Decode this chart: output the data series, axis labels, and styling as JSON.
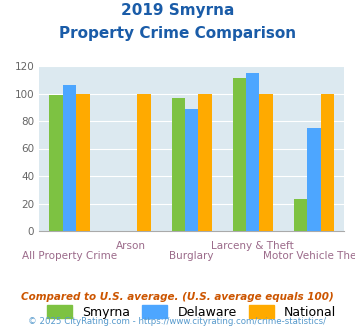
{
  "title_line1": "2019 Smyrna",
  "title_line2": "Property Crime Comparison",
  "categories": [
    "All Property Crime",
    "Arson",
    "Burglary",
    "Larceny & Theft",
    "Motor Vehicle Theft"
  ],
  "smyrna": [
    99,
    null,
    97,
    111,
    23
  ],
  "delaware": [
    106,
    null,
    89,
    115,
    75
  ],
  "national": [
    100,
    100,
    100,
    100,
    100
  ],
  "smyrna_color": "#7dc242",
  "delaware_color": "#4da6ff",
  "national_color": "#ffaa00",
  "ylim": [
    0,
    120
  ],
  "yticks": [
    0,
    20,
    40,
    60,
    80,
    100,
    120
  ],
  "bg_color": "#dce9f0",
  "title_color": "#1a5ca8",
  "xlabel_color": "#9b6a8a",
  "legend_labels": [
    "Smyrna",
    "Delaware",
    "National"
  ],
  "footnote1": "Compared to U.S. average. (U.S. average equals 100)",
  "footnote2": "© 2025 CityRating.com - https://www.cityrating.com/crime-statistics/",
  "footnote1_color": "#cc5500",
  "footnote2_color": "#5599cc"
}
